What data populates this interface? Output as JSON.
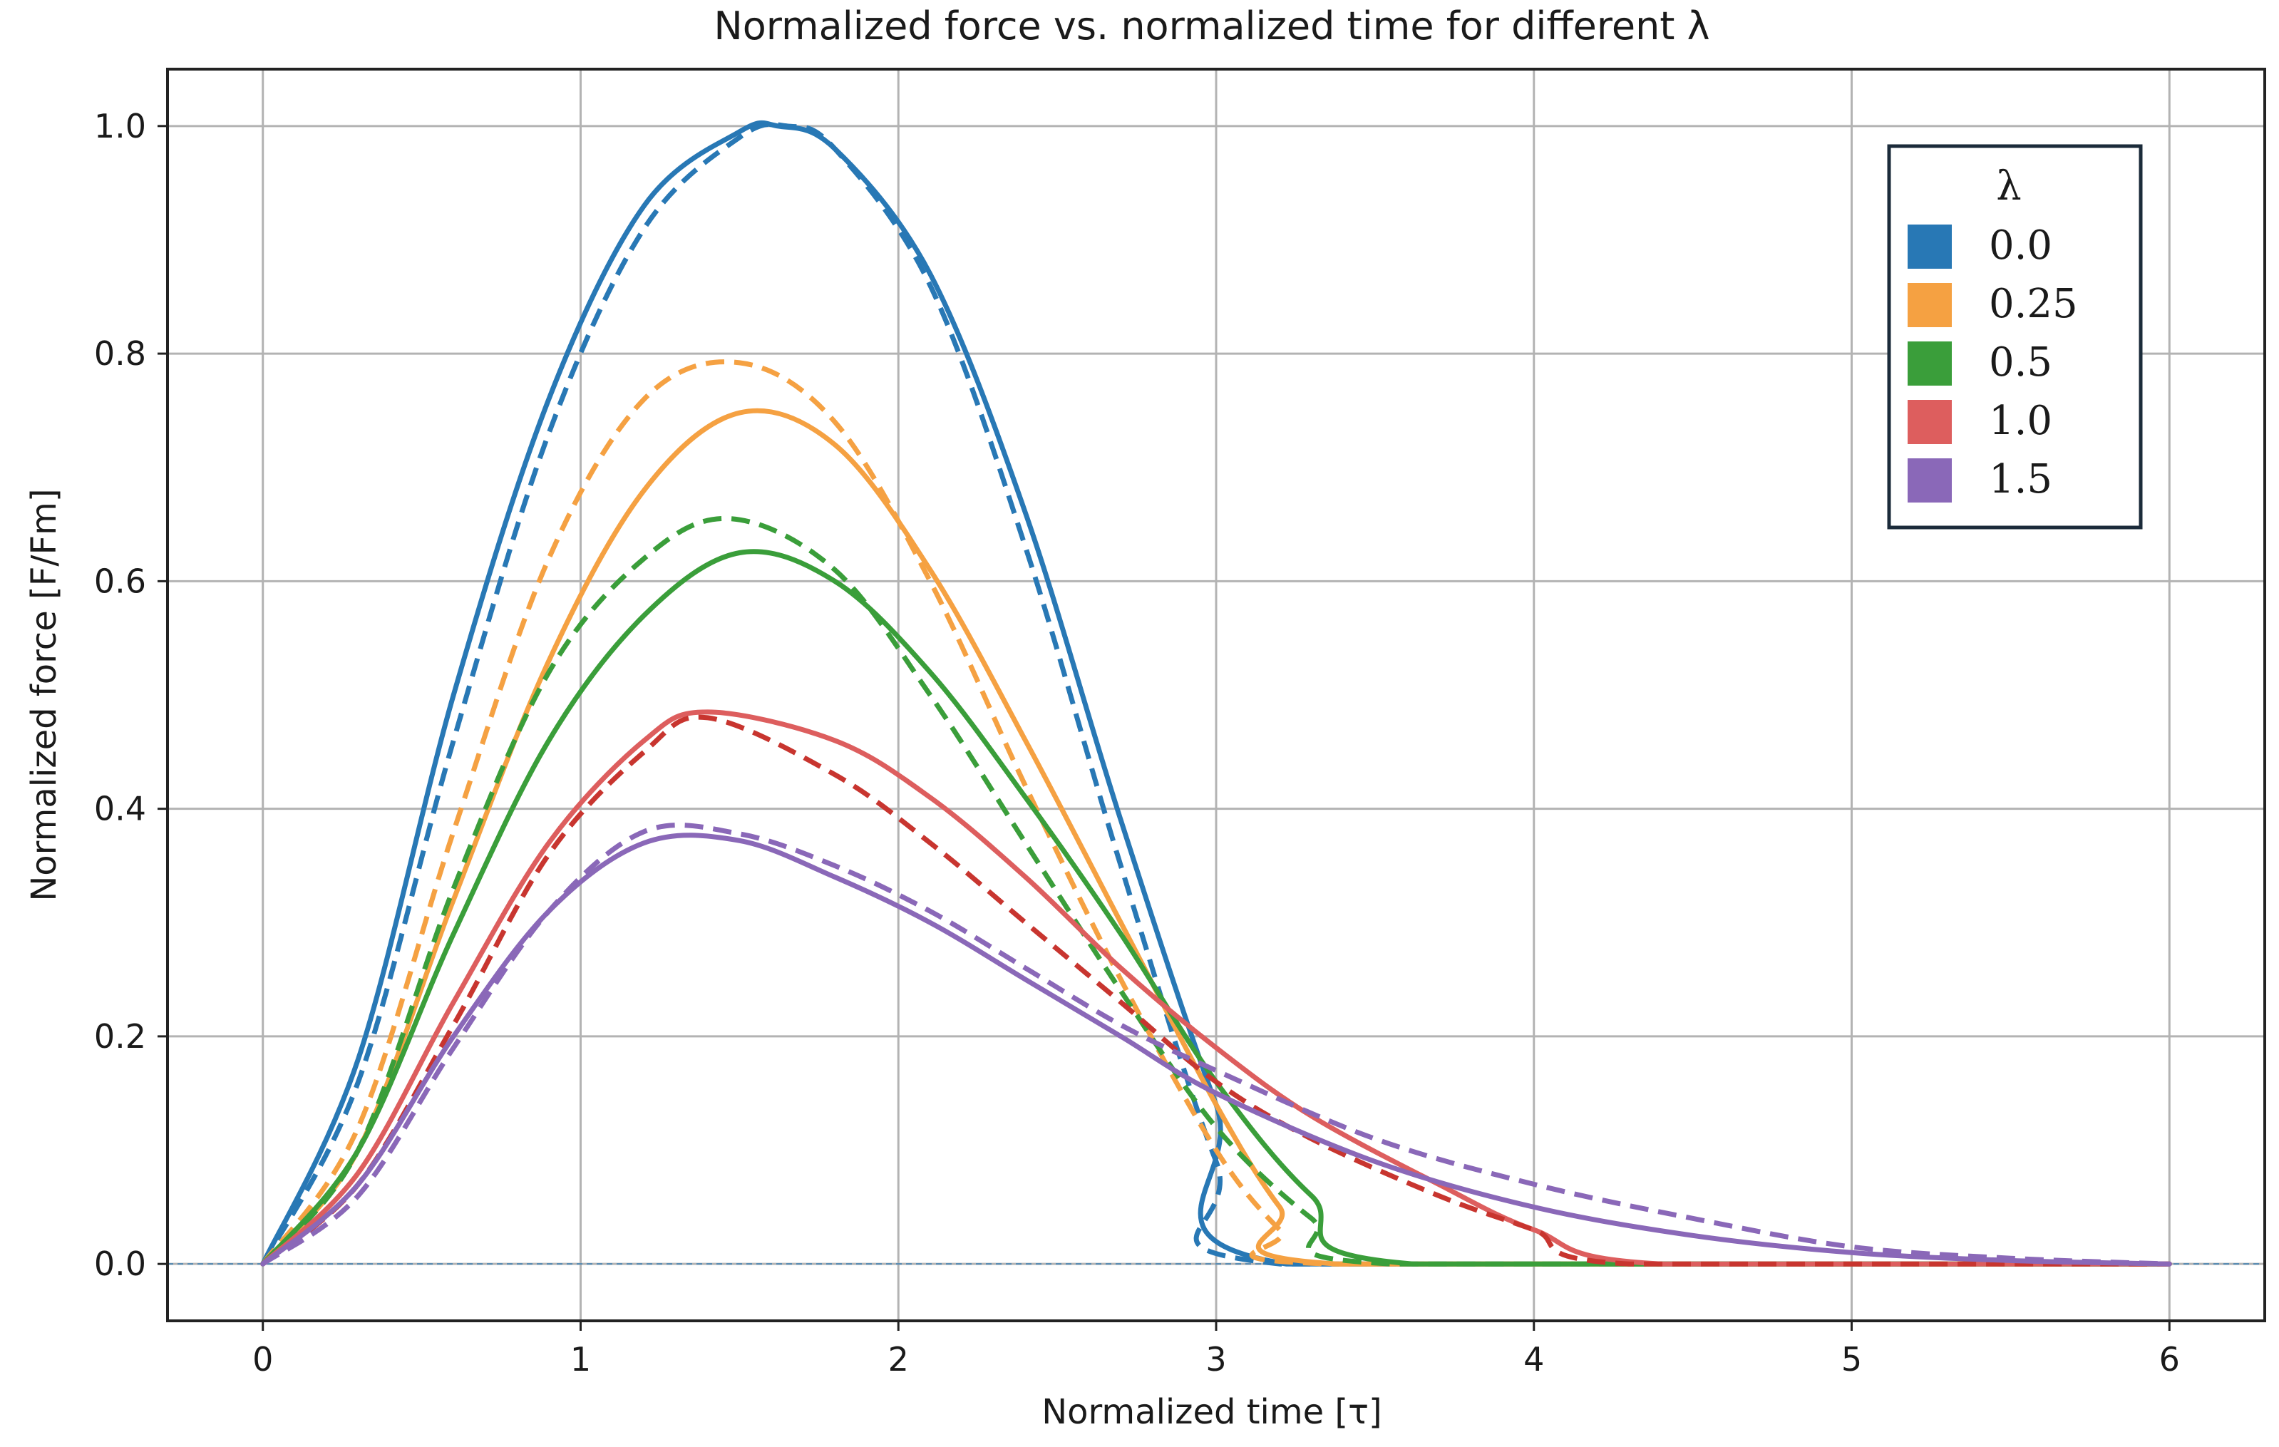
{
  "chart_data": {
    "type": "line",
    "title": "Normalized force vs. normalized time for different λ",
    "xlabel": "Normalized time [τ]",
    "ylabel": "Normalized force [F/Fm]",
    "xlim": [
      -0.3,
      6.3
    ],
    "ylim": [
      -0.05,
      1.05
    ],
    "xticks": [
      0,
      1,
      2,
      3,
      4,
      5,
      6
    ],
    "xtick_labels": [
      "0",
      "1",
      "2",
      "3",
      "4",
      "5",
      "6"
    ],
    "yticks": [
      0.0,
      0.2,
      0.4,
      0.6,
      0.8,
      1.0
    ],
    "ytick_labels": [
      "0.0",
      "0.2",
      "0.4",
      "0.6",
      "0.8",
      "1.0"
    ],
    "grid": true,
    "legend": {
      "title": "λ",
      "placement": "top-right",
      "entries": [
        "0.0",
        "0.25",
        "0.5",
        "1.0",
        "1.5"
      ]
    },
    "line_styles": [
      "solid",
      "dashed"
    ],
    "series": [
      {
        "name": "0.0",
        "color": "#2878b5",
        "style": "solid",
        "x": [
          0,
          0.3,
          0.6,
          0.9,
          1.2,
          1.5,
          1.62,
          1.8,
          2.1,
          2.4,
          2.7,
          3.0,
          3.22,
          6.0
        ],
        "y": [
          0,
          0.18,
          0.5,
          0.76,
          0.93,
          0.995,
          1.0,
          0.98,
          0.87,
          0.66,
          0.39,
          0.14,
          0.0,
          0.0
        ]
      },
      {
        "name": "0.0",
        "color": "#2878b5",
        "style": "dashed",
        "x": [
          0,
          0.3,
          0.6,
          0.9,
          1.2,
          1.5,
          1.65,
          1.8,
          2.1,
          2.4,
          2.7,
          3.0,
          3.2,
          6.0
        ],
        "y": [
          0,
          0.16,
          0.46,
          0.73,
          0.91,
          0.99,
          1.0,
          0.98,
          0.86,
          0.63,
          0.35,
          0.09,
          0.0,
          0.0
        ]
      },
      {
        "name": "0.25",
        "color": "#f5a142",
        "style": "solid",
        "x": [
          0,
          0.3,
          0.6,
          0.9,
          1.2,
          1.5,
          1.8,
          2.1,
          2.4,
          2.7,
          3.0,
          3.2,
          3.38,
          6.0
        ],
        "y": [
          0,
          0.1,
          0.32,
          0.53,
          0.68,
          0.748,
          0.72,
          0.61,
          0.46,
          0.3,
          0.14,
          0.05,
          0.0,
          0.0
        ]
      },
      {
        "name": "0.25",
        "color": "#f5a142",
        "style": "dashed",
        "x": [
          0,
          0.3,
          0.6,
          0.9,
          1.2,
          1.5,
          1.8,
          2.1,
          2.4,
          2.7,
          3.0,
          3.2,
          3.35,
          6.0
        ],
        "y": [
          0,
          0.12,
          0.38,
          0.62,
          0.76,
          0.792,
          0.74,
          0.6,
          0.42,
          0.25,
          0.1,
          0.03,
          0.0,
          0.0
        ]
      },
      {
        "name": "0.5",
        "color": "#3a9e3a",
        "style": "solid",
        "x": [
          0,
          0.3,
          0.6,
          0.9,
          1.2,
          1.5,
          1.8,
          2.1,
          2.4,
          2.7,
          3.0,
          3.3,
          3.62,
          6.0
        ],
        "y": [
          0,
          0.1,
          0.29,
          0.46,
          0.57,
          0.625,
          0.6,
          0.52,
          0.41,
          0.29,
          0.16,
          0.06,
          0.0,
          0.0
        ]
      },
      {
        "name": "0.5",
        "color": "#3a9e3a",
        "style": "dashed",
        "x": [
          0,
          0.3,
          0.6,
          0.9,
          1.2,
          1.47,
          1.8,
          2.1,
          2.4,
          2.7,
          3.0,
          3.3,
          3.55,
          6.0
        ],
        "y": [
          0,
          0.1,
          0.33,
          0.52,
          0.62,
          0.655,
          0.61,
          0.5,
          0.37,
          0.24,
          0.12,
          0.04,
          0.0,
          0.0
        ]
      },
      {
        "name": "1.0",
        "color": "#dd5e5e",
        "style": "solid",
        "x": [
          0,
          0.3,
          0.6,
          0.9,
          1.2,
          1.4,
          1.8,
          2.1,
          2.4,
          2.7,
          3.0,
          3.3,
          3.7,
          4.0,
          4.4,
          6.0
        ],
        "y": [
          0,
          0.08,
          0.23,
          0.37,
          0.46,
          0.485,
          0.46,
          0.41,
          0.34,
          0.26,
          0.19,
          0.13,
          0.07,
          0.03,
          0.0,
          0.0
        ]
      },
      {
        "name": "1.0",
        "color": "#c8352f",
        "style": "dashed",
        "x": [
          0,
          0.3,
          0.6,
          0.9,
          1.2,
          1.4,
          1.8,
          2.1,
          2.4,
          2.7,
          3.0,
          3.3,
          3.7,
          4.0,
          4.3,
          6.0
        ],
        "y": [
          0,
          0.07,
          0.21,
          0.36,
          0.45,
          0.48,
          0.43,
          0.37,
          0.3,
          0.23,
          0.16,
          0.11,
          0.06,
          0.03,
          0.0,
          0.0
        ]
      },
      {
        "name": "1.5",
        "color": "#8a68b8",
        "style": "solid",
        "x": [
          0,
          0.3,
          0.6,
          0.9,
          1.2,
          1.5,
          1.8,
          2.1,
          2.4,
          2.7,
          3.0,
          3.5,
          4.0,
          4.5,
          5.0,
          5.5,
          6.0
        ],
        "y": [
          0,
          0.07,
          0.2,
          0.31,
          0.37,
          0.372,
          0.34,
          0.3,
          0.25,
          0.2,
          0.15,
          0.09,
          0.05,
          0.025,
          0.01,
          0.003,
          0.0
        ]
      },
      {
        "name": "1.5",
        "color": "#8a68b8",
        "style": "dashed",
        "x": [
          0,
          0.3,
          0.6,
          0.9,
          1.2,
          1.5,
          1.8,
          2.1,
          2.4,
          2.7,
          3.0,
          3.5,
          4.0,
          4.5,
          5.0,
          5.5,
          6.0
        ],
        "y": [
          0,
          0.06,
          0.19,
          0.31,
          0.38,
          0.378,
          0.35,
          0.31,
          0.26,
          0.21,
          0.17,
          0.11,
          0.07,
          0.04,
          0.015,
          0.005,
          0.0
        ]
      }
    ]
  }
}
